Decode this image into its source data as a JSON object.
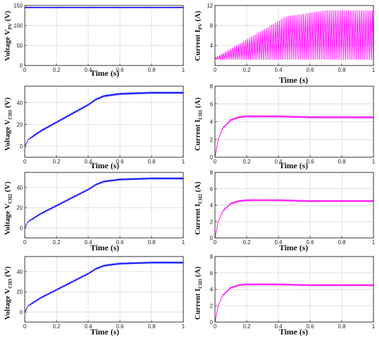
{
  "figure": {
    "panels": [
      {
        "id": "vpv",
        "ylabel_main": "Voltage V",
        "ylabel_sub": "PV",
        "ylabel_unit": " (V)",
        "xlabel": "Time (s)"
      },
      {
        "id": "ipv",
        "ylabel_main": "Current I",
        "ylabel_sub": "PV",
        "ylabel_unit": " (A)",
        "xlabel": "Time (s)"
      },
      {
        "id": "vch1",
        "ylabel_main": "Voltage V",
        "ylabel_sub": "CH1",
        "ylabel_unit": " (V)",
        "xlabel": "Time (s)"
      },
      {
        "id": "ich1",
        "ylabel_main": "Current I",
        "ylabel_sub": "CH1",
        "ylabel_unit": " (A)",
        "xlabel": "Time (s)"
      },
      {
        "id": "vch2",
        "ylabel_main": "Voltage V",
        "ylabel_sub": "CH2",
        "ylabel_unit": " (V)",
        "xlabel": "Time (s)"
      },
      {
        "id": "ich2",
        "ylabel_main": "Current I",
        "ylabel_sub": "CH2",
        "ylabel_unit": " (A)",
        "xlabel": "Time (s)"
      },
      {
        "id": "vch3",
        "ylabel_main": "Voltage V",
        "ylabel_sub": "CH3",
        "ylabel_unit": " (V)",
        "xlabel": "Time (s)"
      },
      {
        "id": "ich3",
        "ylabel_main": "Current I",
        "ylabel_sub": "CH3",
        "ylabel_unit": " (A)",
        "xlabel": "Time (s)"
      }
    ]
  },
  "chart_data": [
    {
      "type": "line",
      "id": "vpv",
      "color": "#0000ff",
      "xlabel": "Time (s)",
      "ylabel": "Voltage V_PV (V)",
      "xlim": [
        0,
        1
      ],
      "ylim": [
        0,
        150
      ],
      "xticks": [
        0,
        0.2,
        0.4,
        0.6,
        0.8,
        1
      ],
      "yticks": [
        0,
        50,
        100,
        150
      ],
      "grid": true,
      "behavior": "constant",
      "value": 145
    },
    {
      "type": "line",
      "id": "ipv",
      "color": "#ff00ff",
      "xlabel": "Time (s)",
      "ylabel": "Current I_PV (A)",
      "xlim": [
        0,
        1
      ],
      "ylim": [
        0,
        12
      ],
      "xticks": [
        0,
        0.2,
        0.4,
        0.6,
        0.8,
        1
      ],
      "yticks": [
        4,
        8,
        12
      ],
      "grid": true,
      "behavior": "ramp_switching",
      "ramp_end_time": 0.45,
      "peak_start": 1.5,
      "peak_final": 11,
      "valley": 1.2
    },
    {
      "type": "line",
      "id": "vch1",
      "color": "#0000ff",
      "xlabel": "Time (s)",
      "ylabel": "Voltage V_CH1 (V)",
      "xlim": [
        0,
        1
      ],
      "ylim": [
        -10,
        55
      ],
      "xticks": [
        0,
        0.2,
        0.4,
        0.6,
        0.8,
        1
      ],
      "yticks": [
        0,
        20,
        40
      ],
      "grid": true,
      "behavior": "ramp",
      "x": [
        0,
        0.02,
        0.1,
        0.2,
        0.3,
        0.4,
        0.45,
        0.5,
        0.6,
        0.8,
        1
      ],
      "y": [
        0,
        6,
        14,
        22,
        30,
        38,
        43,
        46,
        48,
        49,
        49
      ]
    },
    {
      "type": "line",
      "id": "ich1",
      "color": "#ff00ff",
      "xlabel": "Time (s)",
      "ylabel": "Current I_CH1 (A)",
      "xlim": [
        0,
        1
      ],
      "ylim": [
        0,
        8
      ],
      "xticks": [
        0,
        0.2,
        0.4,
        0.6,
        0.8,
        1
      ],
      "yticks": [
        0,
        2,
        4,
        6,
        8
      ],
      "grid": true,
      "behavior": "rise",
      "x": [
        0,
        0.02,
        0.05,
        0.1,
        0.15,
        0.2,
        0.4,
        0.6,
        0.8,
        1
      ],
      "y": [
        0,
        2,
        3.3,
        4.2,
        4.5,
        4.6,
        4.6,
        4.5,
        4.5,
        4.5
      ]
    },
    {
      "type": "line",
      "id": "vch2",
      "color": "#0000ff",
      "xlabel": "Time (s)",
      "ylabel": "Voltage V_CH2 (V)",
      "xlim": [
        0,
        1
      ],
      "ylim": [
        -10,
        55
      ],
      "xticks": [
        0,
        0.2,
        0.4,
        0.6,
        0.8,
        1
      ],
      "yticks": [
        0,
        20,
        40
      ],
      "grid": true,
      "behavior": "ramp",
      "x": [
        0,
        0.02,
        0.1,
        0.2,
        0.3,
        0.4,
        0.45,
        0.5,
        0.6,
        0.8,
        1
      ],
      "y": [
        0,
        6,
        14,
        22,
        30,
        38,
        43,
        46,
        48,
        49,
        49
      ]
    },
    {
      "type": "line",
      "id": "ich2",
      "color": "#ff00ff",
      "xlabel": "Time (s)",
      "ylabel": "Current I_CH2 (A)",
      "xlim": [
        0,
        1
      ],
      "ylim": [
        0,
        8
      ],
      "xticks": [
        0,
        0.2,
        0.4,
        0.6,
        0.8,
        1
      ],
      "yticks": [
        0,
        2,
        4,
        6,
        8
      ],
      "grid": true,
      "behavior": "rise",
      "x": [
        0,
        0.02,
        0.05,
        0.1,
        0.15,
        0.2,
        0.4,
        0.6,
        0.8,
        1
      ],
      "y": [
        0,
        2,
        3.3,
        4.2,
        4.5,
        4.6,
        4.6,
        4.5,
        4.5,
        4.5
      ]
    },
    {
      "type": "line",
      "id": "vch3",
      "color": "#0000ff",
      "xlabel": "Time (s)",
      "ylabel": "Voltage V_CH3 (V)",
      "xlim": [
        0,
        1
      ],
      "ylim": [
        -10,
        55
      ],
      "xticks": [
        0,
        0.2,
        0.4,
        0.6,
        0.8,
        1
      ],
      "yticks": [
        0,
        20,
        40
      ],
      "grid": true,
      "behavior": "ramp",
      "x": [
        0,
        0.02,
        0.1,
        0.2,
        0.3,
        0.4,
        0.45,
        0.5,
        0.6,
        0.8,
        1
      ],
      "y": [
        0,
        6,
        14,
        22,
        30,
        38,
        43,
        46,
        48,
        49,
        49
      ]
    },
    {
      "type": "line",
      "id": "ich3",
      "color": "#ff00ff",
      "xlabel": "Time (s)",
      "ylabel": "Current I_CH3 (A)",
      "xlim": [
        0,
        1
      ],
      "ylim": [
        0,
        8
      ],
      "xticks": [
        0,
        0.2,
        0.4,
        0.6,
        0.8,
        1
      ],
      "yticks": [
        0,
        2,
        4,
        6,
        8
      ],
      "grid": true,
      "behavior": "rise",
      "x": [
        0,
        0.02,
        0.05,
        0.1,
        0.15,
        0.2,
        0.4,
        0.6,
        0.8,
        1
      ],
      "y": [
        0,
        2,
        3.3,
        4.2,
        4.5,
        4.6,
        4.6,
        4.5,
        4.5,
        4.5
      ]
    }
  ]
}
